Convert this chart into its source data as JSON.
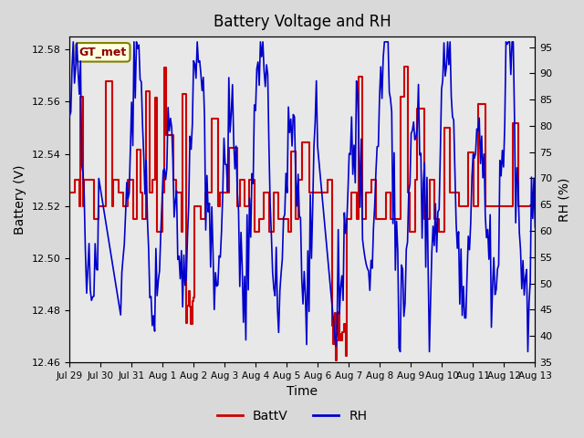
{
  "title": "Battery Voltage and RH",
  "xlabel": "Time",
  "ylabel_left": "Battery (V)",
  "ylabel_right": "RH (%)",
  "station_label": "GT_met",
  "batt_ylim": [
    12.46,
    12.585
  ],
  "rh_ylim": [
    35,
    97
  ],
  "batt_yticks": [
    12.46,
    12.48,
    12.5,
    12.52,
    12.54,
    12.56,
    12.58
  ],
  "rh_yticks": [
    35,
    40,
    45,
    50,
    55,
    60,
    65,
    70,
    75,
    80,
    85,
    90,
    95
  ],
  "batt_color": "#cc0000",
  "rh_color": "#0000cc",
  "background_color": "#d9d9d9",
  "plot_bg_color": "#e8e8e8",
  "x_tick_labels": [
    "Jul 29",
    "Jul 30",
    "Jul 31",
    "Aug 1",
    "Aug 2",
    "Aug 3",
    "Aug 4",
    "Aug 5",
    "Aug 6",
    "Aug 7",
    "Aug 8",
    "Aug 9",
    "Aug 10",
    "Aug 11",
    "Aug 12",
    "Aug 13"
  ],
  "n_days": 15,
  "seed": 42,
  "legend_batt_label": "BattV",
  "legend_rh_label": "RH"
}
